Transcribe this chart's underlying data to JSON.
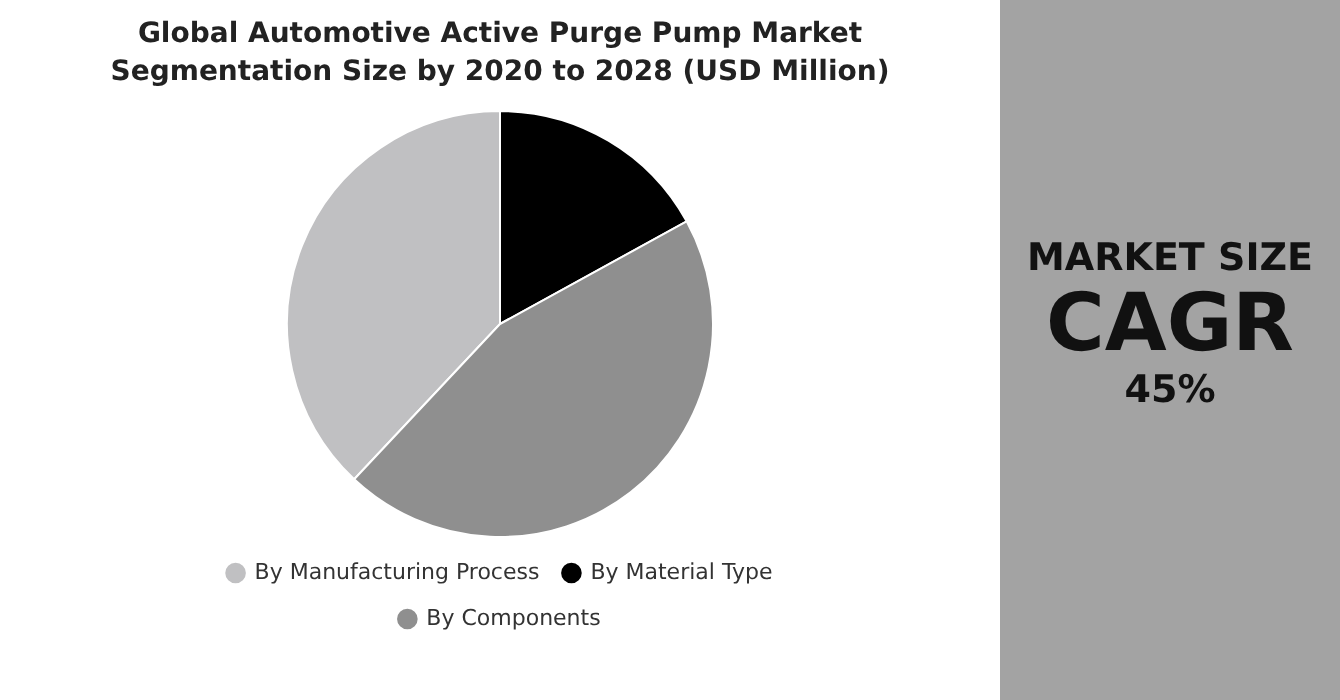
{
  "chart_data": [
    {
      "type": "pie",
      "title": "Global Automotive Active Purge Pump Market Segmentation Size by 2020 to 2028 (USD Million)",
      "categories": [
        "By Manufacturing Process",
        "By Material Type",
        "By Components"
      ],
      "values": [
        38,
        17,
        45
      ],
      "colors": [
        "#c0c0c2",
        "#000000",
        "#8f8f8f"
      ],
      "legend": "bottom"
    },
    {
      "type": "other",
      "title": "MARKET SIZE",
      "annotations": [
        "CAGR",
        "45%"
      ]
    }
  ]
}
